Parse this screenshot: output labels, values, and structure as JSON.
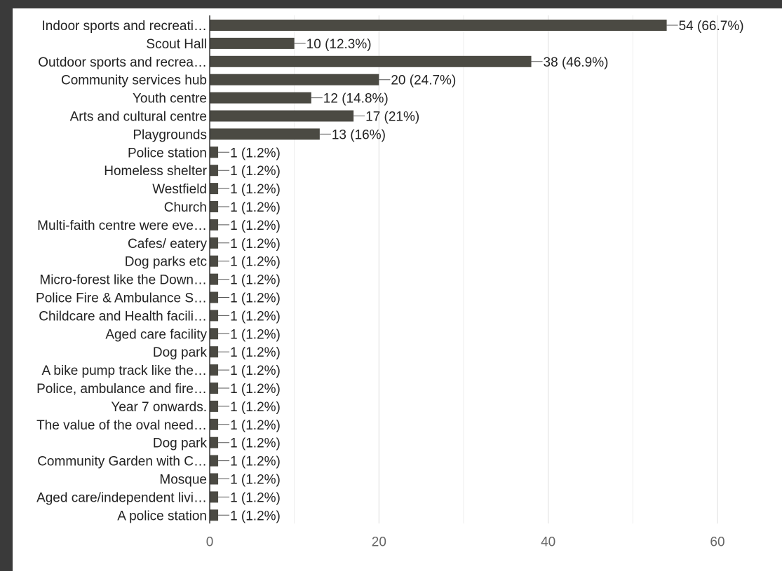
{
  "chart_data": {
    "type": "bar",
    "orientation": "horizontal",
    "title": "",
    "xlabel": "",
    "ylabel": "",
    "xlim": [
      0,
      60
    ],
    "x_ticks": [
      0,
      20,
      40,
      60
    ],
    "grid": true,
    "legend": "none",
    "bar_color": "#4b4a43",
    "categories": [
      "Indoor sports and recreati…",
      "Scout Hall",
      "Outdoor sports and recrea…",
      "Community services hub",
      "Youth centre",
      "Arts and cultural centre",
      "Playgrounds",
      "Police station",
      "Homeless shelter",
      "Westfield",
      "Church",
      "Multi-faith centre were eve…",
      "Cafes/ eatery",
      "Dog parks etc",
      "Micro-forest like the Down…",
      "Police Fire & Ambulance S…",
      "Childcare and Health facili…",
      "Aged care facility",
      "Dog park",
      "A bike pump track like the…",
      "Police, ambulance and fire…",
      "Year 7 onwards.",
      "The value of the oval need…",
      "Dog park",
      "Community Garden with C…",
      "Mosque",
      "Aged care/independent livi…",
      "A police station"
    ],
    "values": [
      54,
      10,
      38,
      20,
      12,
      17,
      13,
      1,
      1,
      1,
      1,
      1,
      1,
      1,
      1,
      1,
      1,
      1,
      1,
      1,
      1,
      1,
      1,
      1,
      1,
      1,
      1,
      1
    ],
    "data_labels": [
      "54 (66.7%)",
      "10 (12.3%)",
      "38 (46.9%)",
      "20 (24.7%)",
      "12 (14.8%)",
      "17 (21%)",
      "13 (16%)",
      "1 (1.2%)",
      "1 (1.2%)",
      "1 (1.2%)",
      "1 (1.2%)",
      "1 (1.2%)",
      "1 (1.2%)",
      "1 (1.2%)",
      "1 (1.2%)",
      "1 (1.2%)",
      "1 (1.2%)",
      "1 (1.2%)",
      "1 (1.2%)",
      "1 (1.2%)",
      "1 (1.2%)",
      "1 (1.2%)",
      "1 (1.2%)",
      "1 (1.2%)",
      "1 (1.2%)",
      "1 (1.2%)",
      "1 (1.2%)",
      "1 (1.2%)"
    ]
  }
}
